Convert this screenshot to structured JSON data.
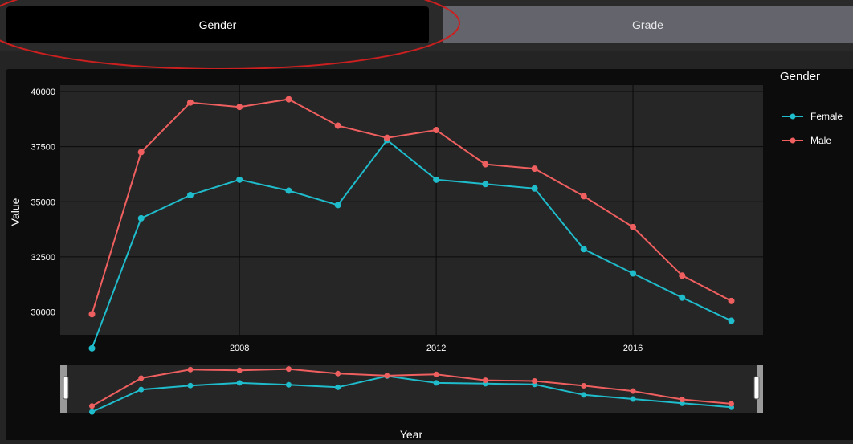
{
  "tabs": [
    {
      "label": "Gender",
      "active": true
    },
    {
      "label": "Grade",
      "active": false
    }
  ],
  "annotation_color": "#cc1f1f",
  "chart_data": {
    "type": "line",
    "xlabel": "Year",
    "ylabel": "Value",
    "legend_title": "Gender",
    "legend_position": "right",
    "xlim": [
      2005,
      2018
    ],
    "ylim": [
      29000,
      40000
    ],
    "x_ticks": [
      2008,
      2012,
      2016
    ],
    "y_ticks": [
      30000,
      32500,
      35000,
      37500,
      40000
    ],
    "grid": true,
    "x": [
      2005,
      2006,
      2007,
      2008,
      2009,
      2010,
      2011,
      2012,
      2013,
      2014,
      2015,
      2016,
      2017,
      2018
    ],
    "series": [
      {
        "name": "Female",
        "color": "#1fbccc",
        "values": [
          28350,
          34250,
          35300,
          36000,
          35500,
          34850,
          37800,
          36000,
          35800,
          35600,
          32850,
          31750,
          30650,
          29600
        ]
      },
      {
        "name": "Male",
        "color": "#ef5f5f",
        "values": [
          29900,
          37250,
          39500,
          39300,
          39650,
          38450,
          37900,
          38250,
          36700,
          36500,
          35250,
          33850,
          31650,
          30500
        ]
      }
    ],
    "range_slider": true
  }
}
